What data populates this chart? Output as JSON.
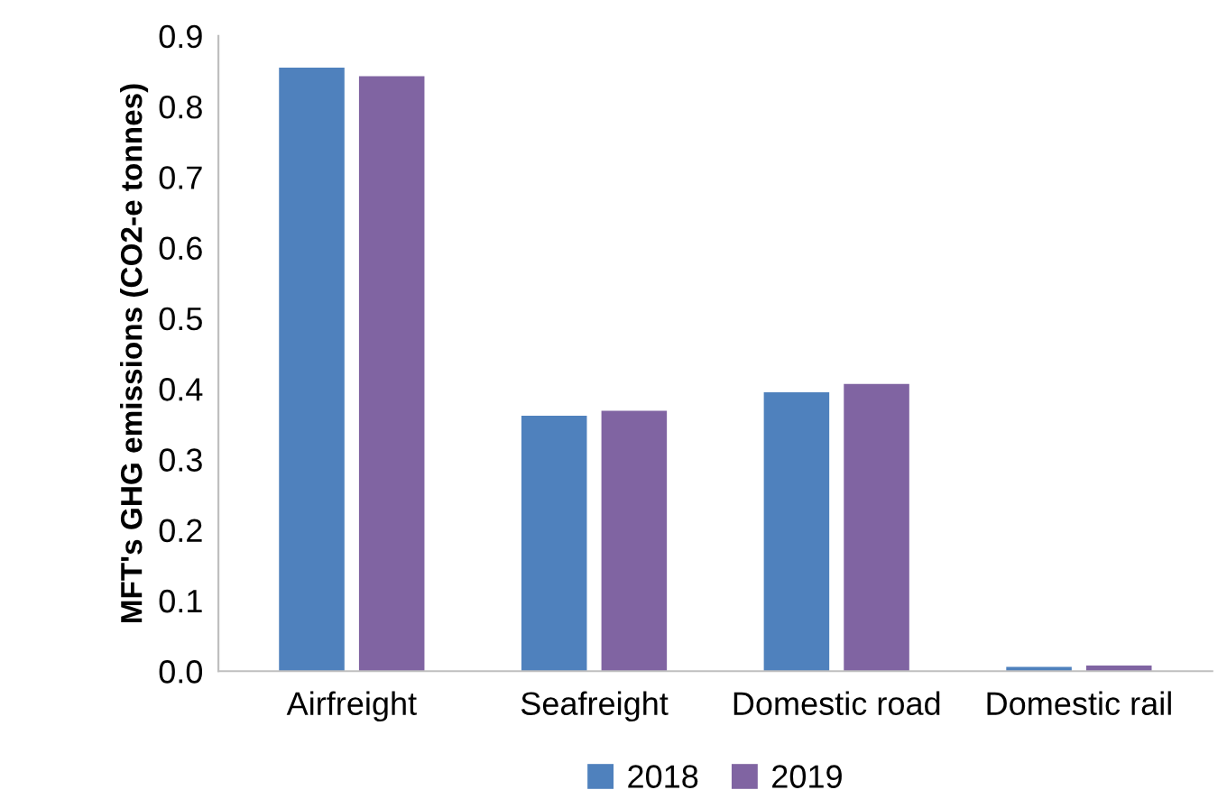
{
  "chart_data": {
    "type": "bar",
    "ylabel": "MFT's GHG emissions (CO2-e tonnes)",
    "categories": [
      "Airfreight",
      "Seafreight",
      "Domestic road",
      "Domestic rail"
    ],
    "series": [
      {
        "name": "2018",
        "color": "#4f81bd",
        "values": [
          0.855,
          0.362,
          0.395,
          0.006
        ]
      },
      {
        "name": "2019",
        "color": "#8064a2",
        "values": [
          0.843,
          0.369,
          0.407,
          0.008
        ]
      }
    ],
    "ylim": [
      0,
      0.9
    ],
    "yticks": [
      {
        "value": 0,
        "label": "0.0"
      },
      0.1,
      0.2,
      0.3,
      0.4,
      0.5,
      0.6,
      0.7,
      0.8,
      0.9
    ],
    "grid": false,
    "legend": "bottom"
  }
}
